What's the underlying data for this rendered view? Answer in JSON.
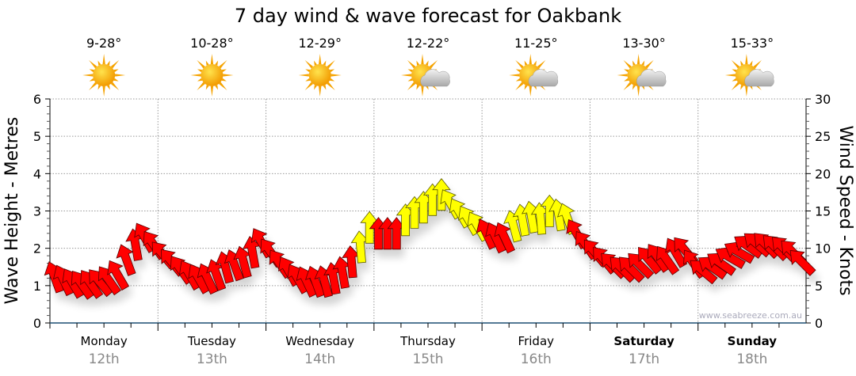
{
  "chart_data": {
    "type": "scatter",
    "title": "7 day wind & wave forecast for Oakbank",
    "ylabel": "Wave Height - Metres",
    "y2label": "Wind Speed - Knots",
    "ylim": [
      0,
      6
    ],
    "y2lim": [
      0,
      30
    ],
    "yticks": [
      "0",
      "1",
      "2",
      "3",
      "4",
      "5",
      "6"
    ],
    "y2ticks": [
      "0",
      "5",
      "10",
      "15",
      "20",
      "25",
      "30"
    ],
    "watermark": "www.seabreeze.com.au",
    "days": [
      {
        "name": "Monday",
        "date": "12th",
        "temp": "9-28°",
        "icon": "sunny",
        "bold": false
      },
      {
        "name": "Tuesday",
        "date": "13th",
        "temp": "10-28°",
        "icon": "sunny",
        "bold": false
      },
      {
        "name": "Wednesday",
        "date": "14th",
        "temp": "12-29°",
        "icon": "sunny",
        "bold": false
      },
      {
        "name": "Thursday",
        "date": "15th",
        "temp": "12-22°",
        "icon": "partly-cloudy",
        "bold": false
      },
      {
        "name": "Friday",
        "date": "16th",
        "temp": "11-25°",
        "icon": "partly-cloudy",
        "bold": false
      },
      {
        "name": "Saturday",
        "date": "17th",
        "temp": "13-30°",
        "icon": "partly-cloudy",
        "bold": true
      },
      {
        "name": "Sunday",
        "date": "18th",
        "temp": "15-33°",
        "icon": "partly-cloudy",
        "bold": true
      }
    ],
    "wind_series": {
      "name": "Wind speed (knots), 2-hourly, arrow direction in degrees",
      "knots": [
        6.2,
        5.8,
        5.4,
        5.2,
        5.3,
        5.5,
        5.8,
        6.5,
        8.5,
        10.5,
        11.5,
        10.5,
        9.2,
        8.2,
        7.2,
        6.5,
        6.0,
        6.0,
        6.5,
        7.5,
        7.8,
        8.2,
        9.5,
        10.8,
        9.5,
        8.0,
        7.0,
        6.0,
        5.6,
        5.6,
        5.6,
        6.0,
        6.8,
        8.2,
        10.2,
        12.8,
        12.0,
        12.0,
        12.0,
        13.8,
        14.8,
        15.5,
        16.5,
        17.2,
        16.0,
        14.8,
        13.8,
        13.0,
        12.0,
        11.5,
        11.5,
        13.0,
        13.8,
        14.2,
        14.0,
        15.0,
        14.5,
        14.0,
        12.0,
        10.5,
        9.5,
        8.5,
        7.8,
        7.3,
        7.3,
        7.8,
        8.5,
        8.8,
        8.5,
        9.5,
        9.8,
        8.0,
        7.0,
        7.5,
        8.0,
        8.8,
        9.5,
        10.3,
        10.6,
        10.5,
        10.2,
        10.0,
        9.5,
        8.2
      ],
      "direction": [
        -20,
        -25,
        -30,
        -35,
        -35,
        -40,
        -35,
        -30,
        -20,
        -10,
        -30,
        -35,
        -40,
        -40,
        -35,
        -30,
        -30,
        -25,
        -20,
        -15,
        -20,
        -15,
        -10,
        -30,
        -35,
        -35,
        -30,
        -30,
        -25,
        -20,
        -15,
        -10,
        -10,
        -5,
        -5,
        0,
        0,
        0,
        0,
        0,
        0,
        0,
        0,
        0,
        -30,
        -30,
        -30,
        -30,
        -25,
        -25,
        -25,
        -15,
        -10,
        -10,
        -5,
        0,
        -10,
        -20,
        -30,
        -35,
        -40,
        -40,
        -45,
        -45,
        -45,
        -45,
        -40,
        -35,
        -35,
        -30,
        -40,
        -35,
        -50,
        -55,
        -55,
        -60,
        -60,
        -55,
        -50,
        -45,
        -45,
        -45,
        -45,
        -45
      ],
      "colors": [
        "r",
        "r",
        "r",
        "r",
        "r",
        "r",
        "r",
        "r",
        "r",
        "r",
        "r",
        "r",
        "r",
        "r",
        "r",
        "r",
        "r",
        "r",
        "r",
        "r",
        "r",
        "r",
        "r",
        "r",
        "r",
        "r",
        "r",
        "r",
        "r",
        "r",
        "r",
        "r",
        "r",
        "r",
        "y",
        "y",
        "r",
        "r",
        "r",
        "y",
        "y",
        "y",
        "y",
        "y",
        "y",
        "y",
        "y",
        "y",
        "r",
        "r",
        "r",
        "y",
        "y",
        "y",
        "y",
        "y",
        "y",
        "y",
        "r",
        "r",
        "r",
        "r",
        "r",
        "r",
        "r",
        "r",
        "r",
        "r",
        "r",
        "r",
        "r",
        "r",
        "r",
        "r",
        "r",
        "r",
        "r",
        "r",
        "r",
        "r",
        "r",
        "r",
        "r",
        "r"
      ]
    },
    "colors": {
      "strong": "#ff0000",
      "moderate": "#ffff00",
      "axis": "#1b4f72",
      "grid": "#999999"
    }
  }
}
